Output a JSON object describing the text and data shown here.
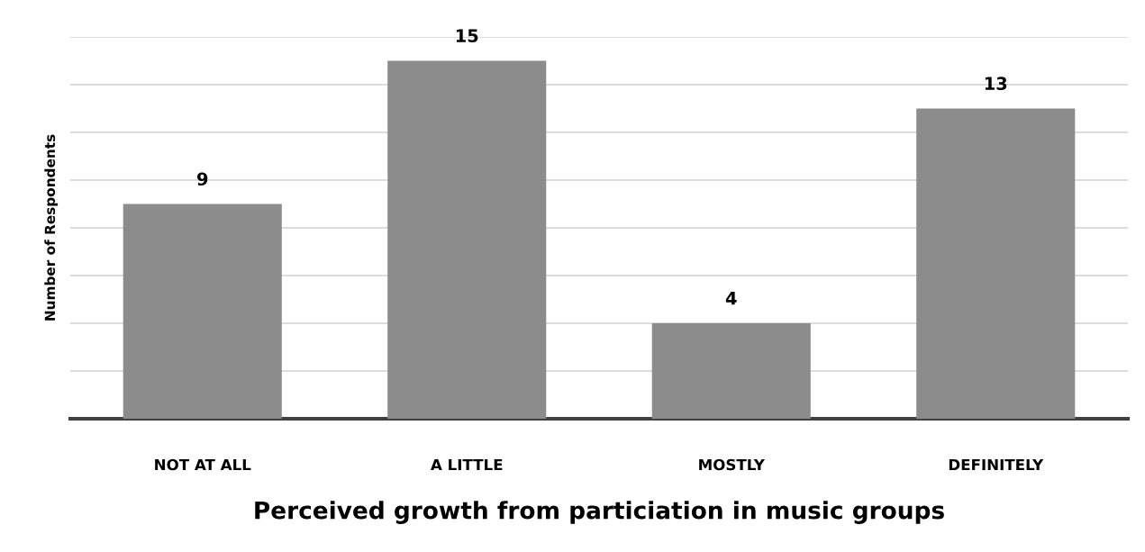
{
  "chart_data": {
    "type": "bar",
    "xlabel": "Perceived growth from particiation in music groups",
    "ylabel": "Number of Respondents",
    "categories": [
      "NOT AT ALL",
      "A LITTLE",
      "MOSTLY",
      "DEFINITELY"
    ],
    "values": [
      9,
      15,
      4,
      13
    ],
    "color": "#8c8c8c",
    "ylim": [
      0,
      16
    ],
    "yticks": [
      0,
      2,
      4,
      6,
      8,
      10,
      12,
      14,
      16
    ],
    "tick_labels": "x",
    "grid": "y",
    "data_labels": true,
    "legend": false
  }
}
